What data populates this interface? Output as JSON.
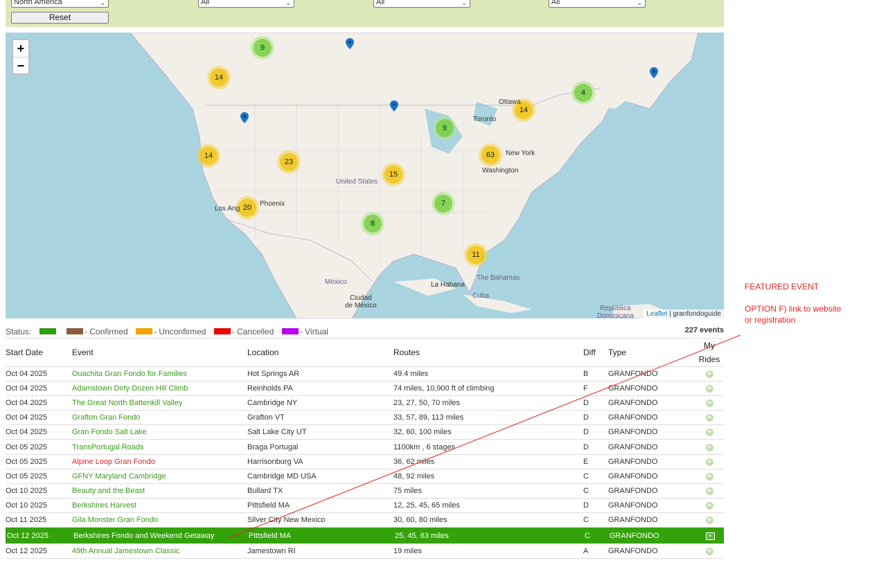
{
  "filters": {
    "region_value": "North America",
    "filter2_value": "All",
    "filter3_value": "All",
    "filter4_value": "All",
    "reset_label": "Reset"
  },
  "map": {
    "zoom_in": "+",
    "zoom_out": "−",
    "clusters": [
      {
        "count": "9",
        "color": "green"
      },
      {
        "count": "14",
        "color": "yellow"
      },
      {
        "count": "4",
        "color": "green"
      },
      {
        "count": "14",
        "color": "yellow"
      },
      {
        "count": "9",
        "color": "green"
      },
      {
        "count": "63",
        "color": "yellow"
      },
      {
        "count": "14",
        "color": "yellow"
      },
      {
        "count": "23",
        "color": "yellow"
      },
      {
        "count": "15",
        "color": "yellow"
      },
      {
        "count": "20",
        "color": "yellow"
      },
      {
        "count": "7",
        "color": "green"
      },
      {
        "count": "8",
        "color": "green"
      },
      {
        "count": "11",
        "color": "yellow"
      }
    ],
    "labels": {
      "ottawa": "Ottawa",
      "toronto": "Toronto",
      "new_york": "New York",
      "washington": "Washington",
      "united_states": "United States",
      "phoenix": "Phoenix",
      "los_angeles": "Los Ang",
      "mexico": "México",
      "ciudad_de_mexico": "Ciudad\nde México",
      "la_habana": "La Habana",
      "bahamas": "The Bahamas",
      "cuba": "Cuba",
      "republica_dominicana": "República\nDominicana"
    },
    "attribution_link": "Leaflet",
    "attribution_text": " | granfondoguide"
  },
  "status": {
    "label": "Status:",
    "confirmed": "- Confirmed",
    "unconfirmed": "- Unconfirmed",
    "cancelled": "- Cancelled",
    "virtual": "- Virtual",
    "colors": {
      "green": "#2e9e12",
      "brown": "#8b5a3c",
      "orange": "#f5a300",
      "red": "#ee0000",
      "purple": "#b400ee"
    },
    "event_count": "227 events"
  },
  "table": {
    "headers": {
      "start_date": "Start Date",
      "event": "Event",
      "location": "Location",
      "routes": "Routes",
      "diff": "Diff",
      "type": "Type",
      "my_rides_1": "My",
      "my_rides_2": "Rides"
    },
    "rows": [
      {
        "date": "Oct 04 2025",
        "event": "Ouachita Gran Fondo for Families",
        "location": "Hot Springs AR",
        "routes": "49.4 miles",
        "diff": "B",
        "type": "GRANFONDO"
      },
      {
        "date": "Oct 04 2025",
        "event": "Adamstown Dirty Dozen Hill Climb",
        "location": "Reinholds PA",
        "routes": "74 miles, 10,900 ft of climbing",
        "diff": "F",
        "type": "GRANFONDO"
      },
      {
        "date": "Oct 04 2025",
        "event": "The Great North Battenkill Valley",
        "location": "Cambridge NY",
        "routes": "23, 27, 50, 70 miles",
        "diff": "D",
        "type": "GRANFONDO"
      },
      {
        "date": "Oct 04 2025",
        "event": "Grafton Gran Fondo",
        "location": "Grafton VT",
        "routes": "33, 57, 89, 113 miles",
        "diff": "D",
        "type": "GRANFONDO"
      },
      {
        "date": "Oct 04 2025",
        "event": "Gran Fondo Salt Lake",
        "location": "Salt Lake City UT",
        "routes": "32, 60, 100 miles",
        "diff": "D",
        "type": "GRANFONDO"
      },
      {
        "date": "Oct 05 2025",
        "event": "TransPortugal Roads",
        "location": "Braga Portugal",
        "routes": "1100km , 6 stages",
        "diff": "D",
        "type": "GRANFONDO"
      },
      {
        "date": "Oct 05 2025",
        "event": "Alpine Loop Gran Fondo",
        "location": "Harrisonburg VA",
        "routes": "36, 62 miles",
        "diff": "E",
        "type": "GRANFONDO",
        "cancelled": true
      },
      {
        "date": "Oct 05 2025",
        "event": "GFNY Maryland Cambridge",
        "location": "Cambridge MD USA",
        "routes": "48, 92 miles",
        "diff": "C",
        "type": "GRANFONDO"
      },
      {
        "date": "Oct 10 2025",
        "event": "Beauty and the Beast",
        "location": "Bullard TX",
        "routes": "75 miles",
        "diff": "C",
        "type": "GRANFONDO"
      },
      {
        "date": "Oct 10 2025",
        "event": "Berkshires Harvest",
        "location": "Pittsfield MA",
        "routes": "12, 25, 45, 65 miles",
        "diff": "D",
        "type": "GRANFONDO"
      },
      {
        "date": "Oct 11 2025",
        "event": "Gila Monster Gran Fondo",
        "location": "Silver City New Mexico",
        "routes": "30, 60, 80 miles",
        "diff": "C",
        "type": "GRANFONDO"
      },
      {
        "date": "Oct 12 2025",
        "event": "Berkshires Fondo and Weekend Getaway",
        "location": "Pittsfield MA",
        "routes": "25, 45, 63 miles",
        "diff": "C",
        "type": "GRANFONDO",
        "featured": true
      },
      {
        "date": "Oct 12 2025",
        "event": "49th Annual Jamestown Classic",
        "location": "Jamestown RI",
        "routes": "19 miles",
        "diff": "A",
        "type": "GRANFONDO"
      }
    ]
  },
  "annotation": {
    "title": "FEATURED EVENT",
    "line1": "OPTION F) link to website",
    "line2": "or registration",
    "color": "#e8241c"
  }
}
